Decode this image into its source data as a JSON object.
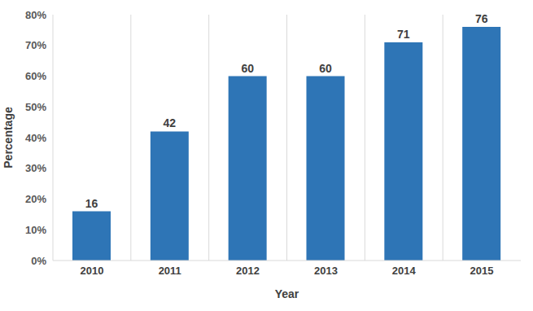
{
  "chart_data": {
    "type": "bar",
    "x_label": "Year",
    "y_label": "Percentage",
    "categories": [
      "2010",
      "2011",
      "2012",
      "2013",
      "2014",
      "2015"
    ],
    "values": [
      16,
      42,
      60,
      60,
      71,
      76
    ],
    "color": "#2e75b6",
    "ylim": [
      0,
      80
    ],
    "yticks": [
      {
        "value": 0,
        "label": "0%"
      },
      {
        "value": 10,
        "label": "10%"
      },
      {
        "value": 20,
        "label": "20%"
      },
      {
        "value": 30,
        "label": "30%"
      },
      {
        "value": 40,
        "label": "40%"
      },
      {
        "value": 50,
        "label": "50%"
      },
      {
        "value": 60,
        "label": "60%"
      },
      {
        "value": 70,
        "label": "70%"
      },
      {
        "value": 80,
        "label": "80%"
      }
    ],
    "grid": true,
    "data_labels": true
  }
}
